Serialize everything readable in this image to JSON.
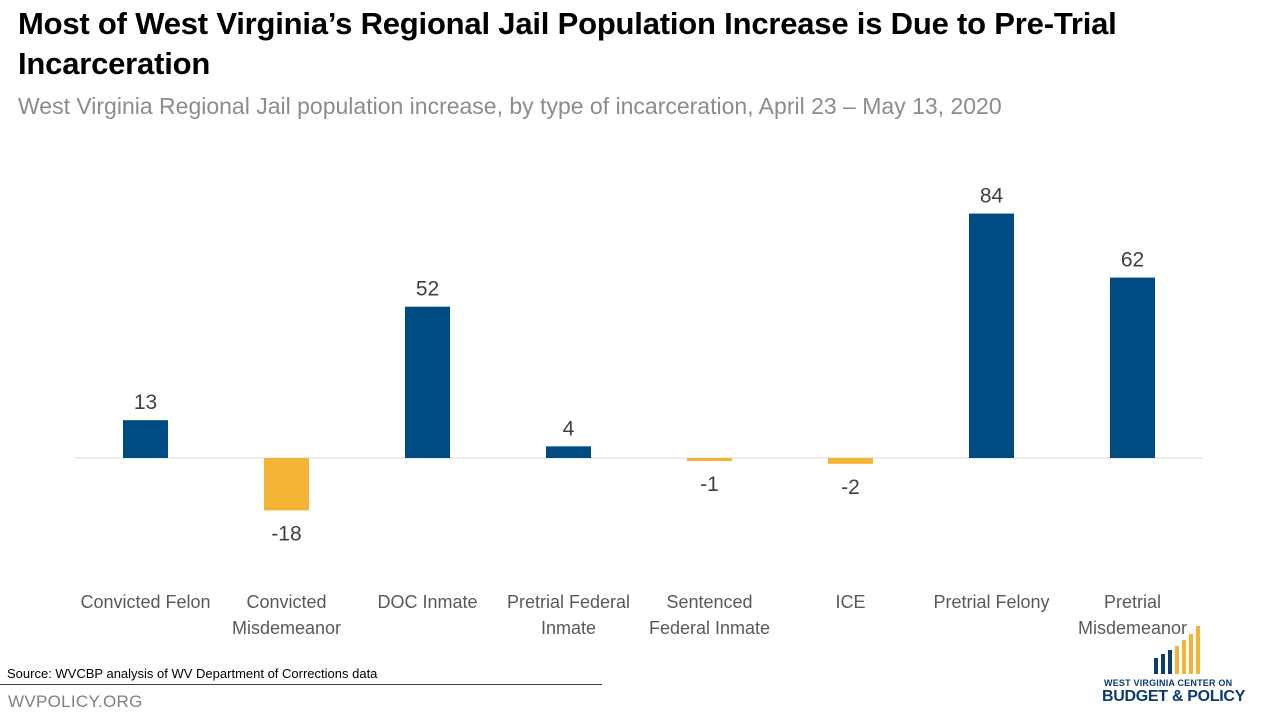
{
  "title": "Most of West Virginia’s Regional Jail Population Increase is Due to Pre-Trial Incarceration",
  "subtitle": "West Virginia Regional Jail population increase, by type of incarceration, April 23 – May 13, 2020",
  "source": "Source: WVCBP analysis of WV Department of Corrections data",
  "footer_site": "WVPOLICY.ORG",
  "logo": {
    "line1": "WEST VIRGINIA CENTER ON",
    "line2": "BUDGET & POLICY"
  },
  "colors": {
    "positive": "#004b82",
    "negative": "#f4b436",
    "axis": "#d9d9d9",
    "text": "#404040",
    "logo_blue": "#0b3c6e"
  },
  "chart_data": {
    "type": "bar",
    "categories": [
      [
        "Convicted Felon"
      ],
      [
        "Convicted",
        "Misdemeanor"
      ],
      [
        "DOC Inmate"
      ],
      [
        "Pretrial Federal",
        "Inmate"
      ],
      [
        "Sentenced",
        "Federal Inmate"
      ],
      [
        "ICE"
      ],
      [
        "Pretrial Felony"
      ],
      [
        "Pretrial",
        "Misdemeanor"
      ]
    ],
    "values": [
      13,
      -18,
      52,
      4,
      -1,
      -2,
      84,
      62
    ],
    "data_labels": [
      "13",
      "-18",
      "52",
      "4",
      "-1",
      "-2",
      "84",
      "62"
    ],
    "xlabel": "",
    "ylabel": "",
    "grid": false,
    "legend": "none"
  }
}
